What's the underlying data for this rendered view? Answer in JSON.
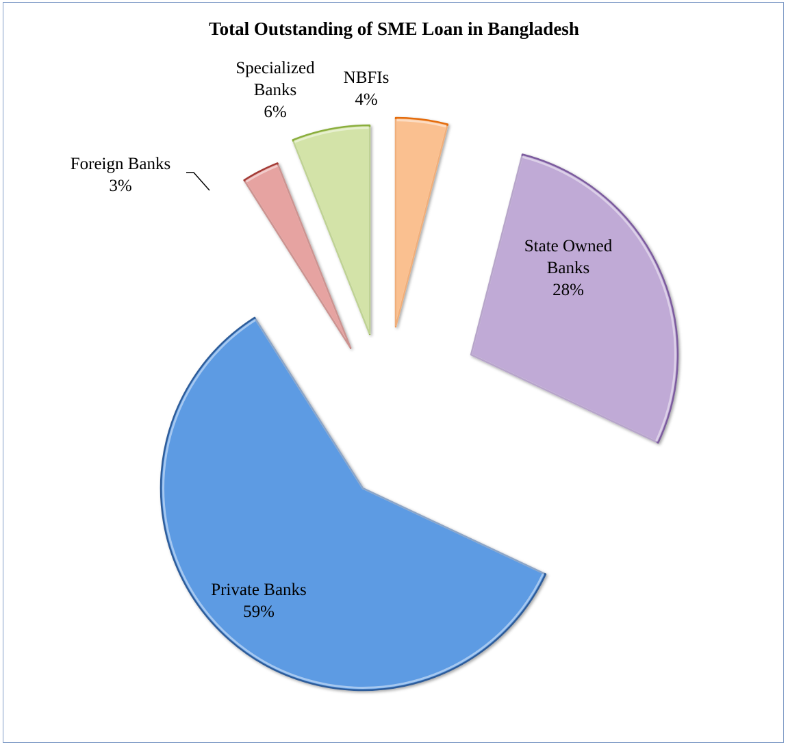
{
  "chart_data": {
    "type": "pie",
    "title": "Total Outstanding of SME Loan in Bangladesh",
    "slices": [
      {
        "key": "nbfis",
        "label_lines": [
          "NBFIs",
          "4%"
        ],
        "value": 4,
        "color": "#FAC090",
        "stroke": "#E46C0A"
      },
      {
        "key": "state-owned-banks",
        "label_lines": [
          "State Owned",
          "Banks",
          "28%"
        ],
        "value": 28,
        "color": "#C0AAD6",
        "stroke": "#7B5B9E"
      },
      {
        "key": "private-banks",
        "label_lines": [
          "Private Banks",
          "59%"
        ],
        "value": 59,
        "color": "#5D9BE3",
        "stroke": "#2E5C99"
      },
      {
        "key": "foreign-banks",
        "label_lines": [
          "Foreign Banks",
          "3%"
        ],
        "value": 3,
        "color": "#E6A3A1",
        "stroke": "#A33A36"
      },
      {
        "key": "specialized-banks",
        "label_lines": [
          "Specialized",
          "Banks",
          "6%"
        ],
        "value": 6,
        "color": "#D3E3A8",
        "stroke": "#8AAE3E"
      }
    ],
    "legend": "none",
    "style": "exploded 3d-bevel pie with data labels"
  }
}
